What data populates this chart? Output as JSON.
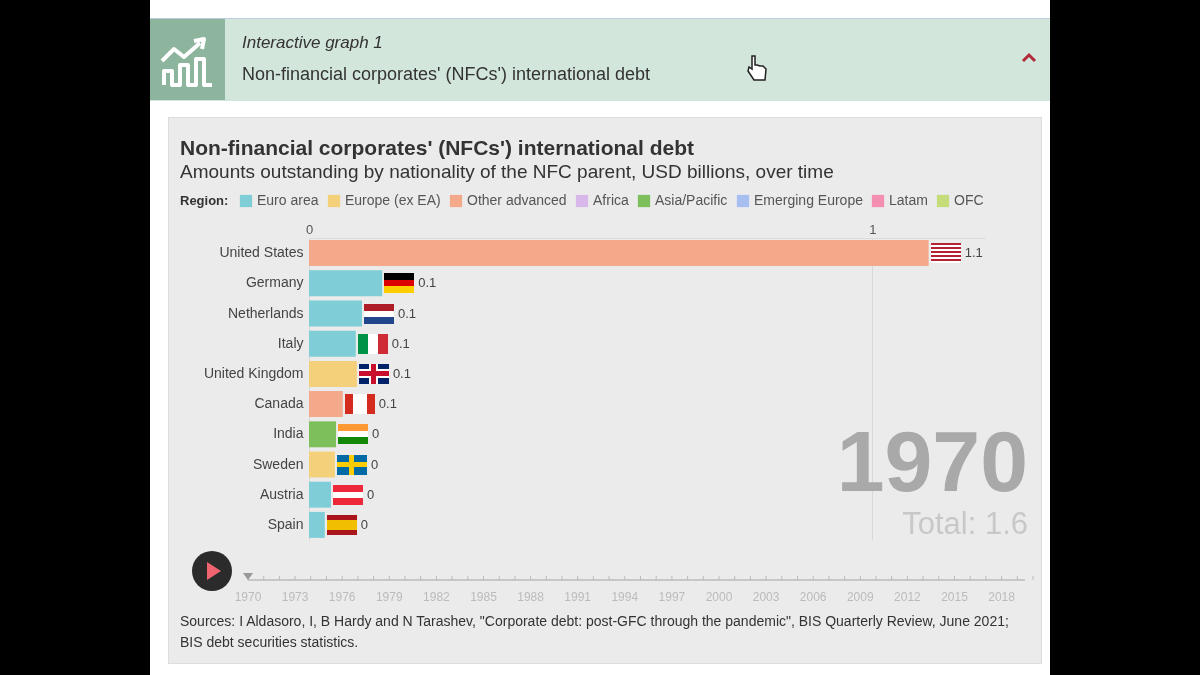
{
  "chart_data": {
    "type": "bar",
    "orientation": "horizontal",
    "stacked": true,
    "title": "Non-financial corporates' (NFCs') international debt",
    "subtitle": "Amounts outstanding by nationality of the NFC parent, USD billions, over time",
    "legend_title": "Region:",
    "legend": "top",
    "grid": true,
    "categories": [
      "United States",
      "Germany",
      "Netherlands",
      "Italy",
      "United Kingdom",
      "Canada",
      "India",
      "Sweden",
      "Austria",
      "Spain"
    ],
    "xlim": [
      0,
      1.2
    ],
    "xticks": [
      0,
      1
    ],
    "series": [
      {
        "name": "Euro area",
        "color": "#7fcdd6",
        "values": [
          null,
          0.13,
          0.094,
          0.083,
          null,
          null,
          null,
          null,
          0.039,
          0.028
        ],
        "value_labels": [
          null,
          "0.1",
          "0.1",
          "0.1",
          null,
          null,
          null,
          null,
          "0",
          "0"
        ]
      },
      {
        "name": "Europe (ex EA)",
        "color": "#f5d07a",
        "values": [
          null,
          null,
          null,
          null,
          0.085,
          null,
          null,
          0.046,
          null,
          null
        ],
        "value_labels": [
          null,
          null,
          null,
          null,
          "0.1",
          null,
          null,
          "0",
          null,
          null
        ]
      },
      {
        "name": "Other advanced",
        "color": "#f4a98a",
        "values": [
          1.1,
          null,
          null,
          null,
          null,
          0.06,
          null,
          null,
          null,
          null
        ],
        "value_labels": [
          "1.1",
          null,
          null,
          null,
          null,
          "0.1",
          null,
          null,
          null,
          null
        ]
      },
      {
        "name": "Africa",
        "color": "#d8b8ea",
        "values": [
          null,
          null,
          null,
          null,
          null,
          null,
          null,
          null,
          null,
          null
        ]
      },
      {
        "name": "Asia/Pacific",
        "color": "#7dbf5a",
        "values": [
          null,
          null,
          null,
          null,
          null,
          null,
          0.048,
          null,
          null,
          null
        ],
        "value_labels": [
          null,
          null,
          null,
          null,
          null,
          null,
          "0",
          null,
          null,
          null
        ]
      },
      {
        "name": "Emerging Europe",
        "color": "#a7bff0",
        "values": [
          null,
          null,
          null,
          null,
          null,
          null,
          null,
          null,
          null,
          null
        ]
      },
      {
        "name": "Latam",
        "color": "#f48fb1",
        "values": [
          null,
          null,
          null,
          null,
          null,
          null,
          null,
          null,
          null,
          null
        ]
      },
      {
        "name": "OFC",
        "color": "#c5dc7a",
        "values": [
          null,
          null,
          null,
          null,
          null,
          null,
          null,
          null,
          null,
          null
        ]
      }
    ],
    "annotations": [
      "Interactive graph 1",
      "Non-financial corporates' (NFCs') international debt",
      "1970",
      "Total: 1.6",
      "1970",
      "1973",
      "1976",
      "1979",
      "1982",
      "1985",
      "1988",
      "1991",
      "1994",
      "1997",
      "2000",
      "2003",
      "2006",
      "2009",
      "2012",
      "2015",
      "2018",
      "Sources: I Aldasoro, I, B Hardy and N Tarashev, \"Corporate debt: post-GFC through the pandemic\", BIS Quarterly Review, June 2021; BIS debt securities statistics."
    ]
  }
}
